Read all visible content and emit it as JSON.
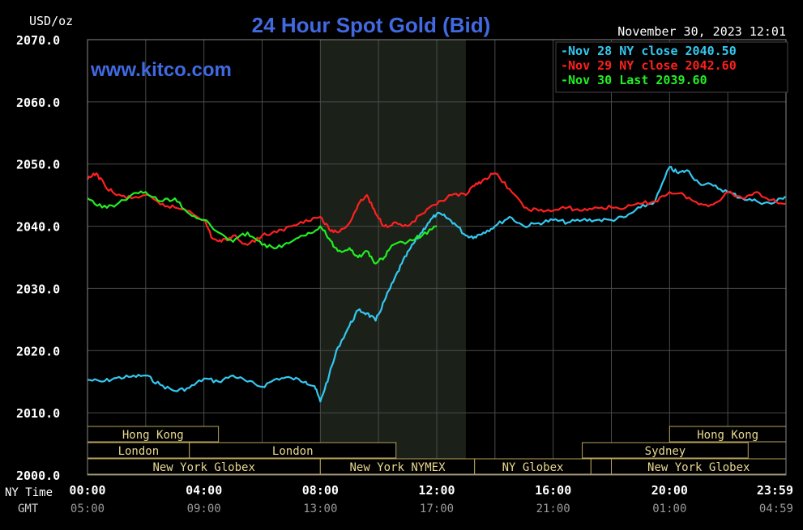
{
  "chart_data": {
    "type": "line",
    "title": "24 Hour Spot Gold (Bid)",
    "ylabel": "USD/oz",
    "website": "www.kitco.com",
    "timestamp": "November 30, 2023 12:01",
    "ylim": [
      2000,
      2070
    ],
    "xlim": [
      0,
      24
    ],
    "y_ticks": [
      "2070.0",
      "2060.0",
      "2050.0",
      "2040.0",
      "2030.0",
      "2020.0",
      "2010.0",
      "2000.0"
    ],
    "x_tick_positions": [
      0,
      4,
      8,
      12,
      16,
      20,
      23.983
    ],
    "ny_time_label": "NY Time",
    "gmt_label": "GMT",
    "ny_time_ticks": [
      "00:00",
      "04:00",
      "08:00",
      "12:00",
      "16:00",
      "20:00",
      "23:59"
    ],
    "gmt_ticks": [
      "05:00",
      "09:00",
      "13:00",
      "17:00",
      "21:00",
      "01:00",
      "04:59"
    ],
    "shaded_region": [
      8,
      13
    ],
    "grid": true,
    "legend_position": "top-right",
    "legend": [
      {
        "text": "Nov 28 NY close 2040.50",
        "color": "#33c8f0"
      },
      {
        "text": "Nov 29 NY close 2042.60",
        "color": "#ff2020"
      },
      {
        "text": "Nov 30 Last 2039.60",
        "color": "#22ee22"
      }
    ],
    "sessions": [
      {
        "label": "Hong Kong",
        "row": 0,
        "start": 0,
        "end": 4.5
      },
      {
        "label": "Hong Kong",
        "row": 0,
        "start": 20,
        "end": 24
      },
      {
        "label": "London",
        "row": 1,
        "start": 0,
        "end": 3.5
      },
      {
        "label": "London",
        "row": 1,
        "start": 3.5,
        "end": 10.6
      },
      {
        "label": "Sydney",
        "row": 1,
        "start": 17,
        "end": 22.7
      },
      {
        "label": "New York Globex",
        "row": 2,
        "start": 0,
        "end": 8
      },
      {
        "label": "New York NYMEX",
        "row": 2,
        "start": 8,
        "end": 13.3
      },
      {
        "label": "NY Globex",
        "row": 2,
        "start": 13.3,
        "end": 17.3
      },
      {
        "label": "",
        "row": 2,
        "start": 17.3,
        "end": 18
      },
      {
        "label": "New York Globex",
        "row": 2,
        "start": 18,
        "end": 24
      }
    ],
    "series": [
      {
        "color": "#33c8f0",
        "x": [
          0,
          0.5,
          1,
          1.5,
          2,
          2.5,
          3,
          3.5,
          4,
          4.5,
          5,
          5.5,
          6,
          6.5,
          7,
          7.5,
          7.8,
          8,
          8.3,
          8.6,
          9,
          9.3,
          9.6,
          9.9,
          10.2,
          10.5,
          10.8,
          11.1,
          11.4,
          11.7,
          12,
          12.3,
          12.6,
          13,
          13.3,
          13.6,
          14,
          14.5,
          15,
          15.5,
          16,
          16.5,
          17,
          17.5,
          18,
          18.5,
          19,
          19.5,
          20,
          20.3,
          20.6,
          21,
          21.5,
          22,
          22.5,
          23,
          23.5,
          23.98
        ],
        "y": [
          2015.3,
          2015.0,
          2015.6,
          2015.8,
          2016.0,
          2014.5,
          2013.5,
          2014.0,
          2015.5,
          2015.0,
          2016.0,
          2015.0,
          2014.2,
          2015.5,
          2015.6,
          2015.0,
          2014.3,
          2011.8,
          2016.0,
          2020.5,
          2024.0,
          2026.5,
          2026.0,
          2024.8,
          2028.0,
          2031.0,
          2034.0,
          2036.5,
          2038.5,
          2040.5,
          2042.0,
          2041.5,
          2040.5,
          2038.5,
          2038.3,
          2039.0,
          2040.0,
          2041.5,
          2040.0,
          2040.5,
          2041.0,
          2040.6,
          2041.0,
          2041.0,
          2041.0,
          2041.5,
          2043.0,
          2044.0,
          2049.5,
          2048.5,
          2049.0,
          2047.0,
          2046.5,
          2045.5,
          2044.5,
          2044.0,
          2043.6,
          2044.8
        ]
      },
      {
        "color": "#ff2020",
        "x": [
          0,
          0.3,
          0.6,
          1,
          1.5,
          2,
          2.5,
          3,
          3.5,
          4,
          4.3,
          4.6,
          5,
          5.5,
          6,
          6.5,
          7,
          7.5,
          8,
          8.3,
          8.6,
          9,
          9.3,
          9.6,
          9.9,
          10.2,
          10.5,
          11,
          11.5,
          12,
          12.5,
          13,
          13.3,
          13.6,
          14,
          14.5,
          15,
          15.5,
          16,
          16.5,
          17,
          17.5,
          18,
          18.5,
          19,
          19.5,
          20,
          20.5,
          21,
          21.5,
          22,
          22.5,
          23,
          23.5,
          23.98
        ],
        "y": [
          2047.5,
          2048.5,
          2046.5,
          2045.0,
          2044.5,
          2045.0,
          2043.5,
          2043.0,
          2042.5,
          2041.0,
          2038.0,
          2037.5,
          2038.5,
          2037.0,
          2038.5,
          2039.0,
          2040.0,
          2041.0,
          2041.5,
          2039.5,
          2039.0,
          2040.5,
          2043.5,
          2045.0,
          2042.0,
          2040.0,
          2040.5,
          2040.0,
          2042.0,
          2043.5,
          2045.0,
          2045.0,
          2046.5,
          2047.5,
          2048.5,
          2046.0,
          2043.0,
          2042.5,
          2042.5,
          2043.0,
          2042.5,
          2043.0,
          2043.0,
          2043.0,
          2043.6,
          2044.0,
          2045.5,
          2045.0,
          2043.5,
          2043.5,
          2045.5,
          2044.5,
          2045.5,
          2044.2,
          2043.6
        ]
      },
      {
        "color": "#22ee22",
        "x": [
          0,
          0.5,
          1,
          1.5,
          2,
          2.5,
          3,
          3.5,
          4,
          4.5,
          5,
          5.5,
          6,
          6.5,
          7,
          7.5,
          8,
          8.3,
          8.6,
          9,
          9.3,
          9.6,
          9.9,
          10.2,
          10.5,
          11,
          11.5,
          12
        ],
        "y": [
          2044.5,
          2043.0,
          2043.5,
          2045.0,
          2045.5,
          2044.0,
          2044.5,
          2042.0,
          2041.0,
          2039.0,
          2037.5,
          2039.0,
          2037.0,
          2036.5,
          2037.5,
          2038.5,
          2040.0,
          2038.0,
          2036.0,
          2036.5,
          2035.0,
          2036.0,
          2034.0,
          2035.0,
          2037.0,
          2037.5,
          2038.5,
          2040.0
        ]
      }
    ]
  }
}
